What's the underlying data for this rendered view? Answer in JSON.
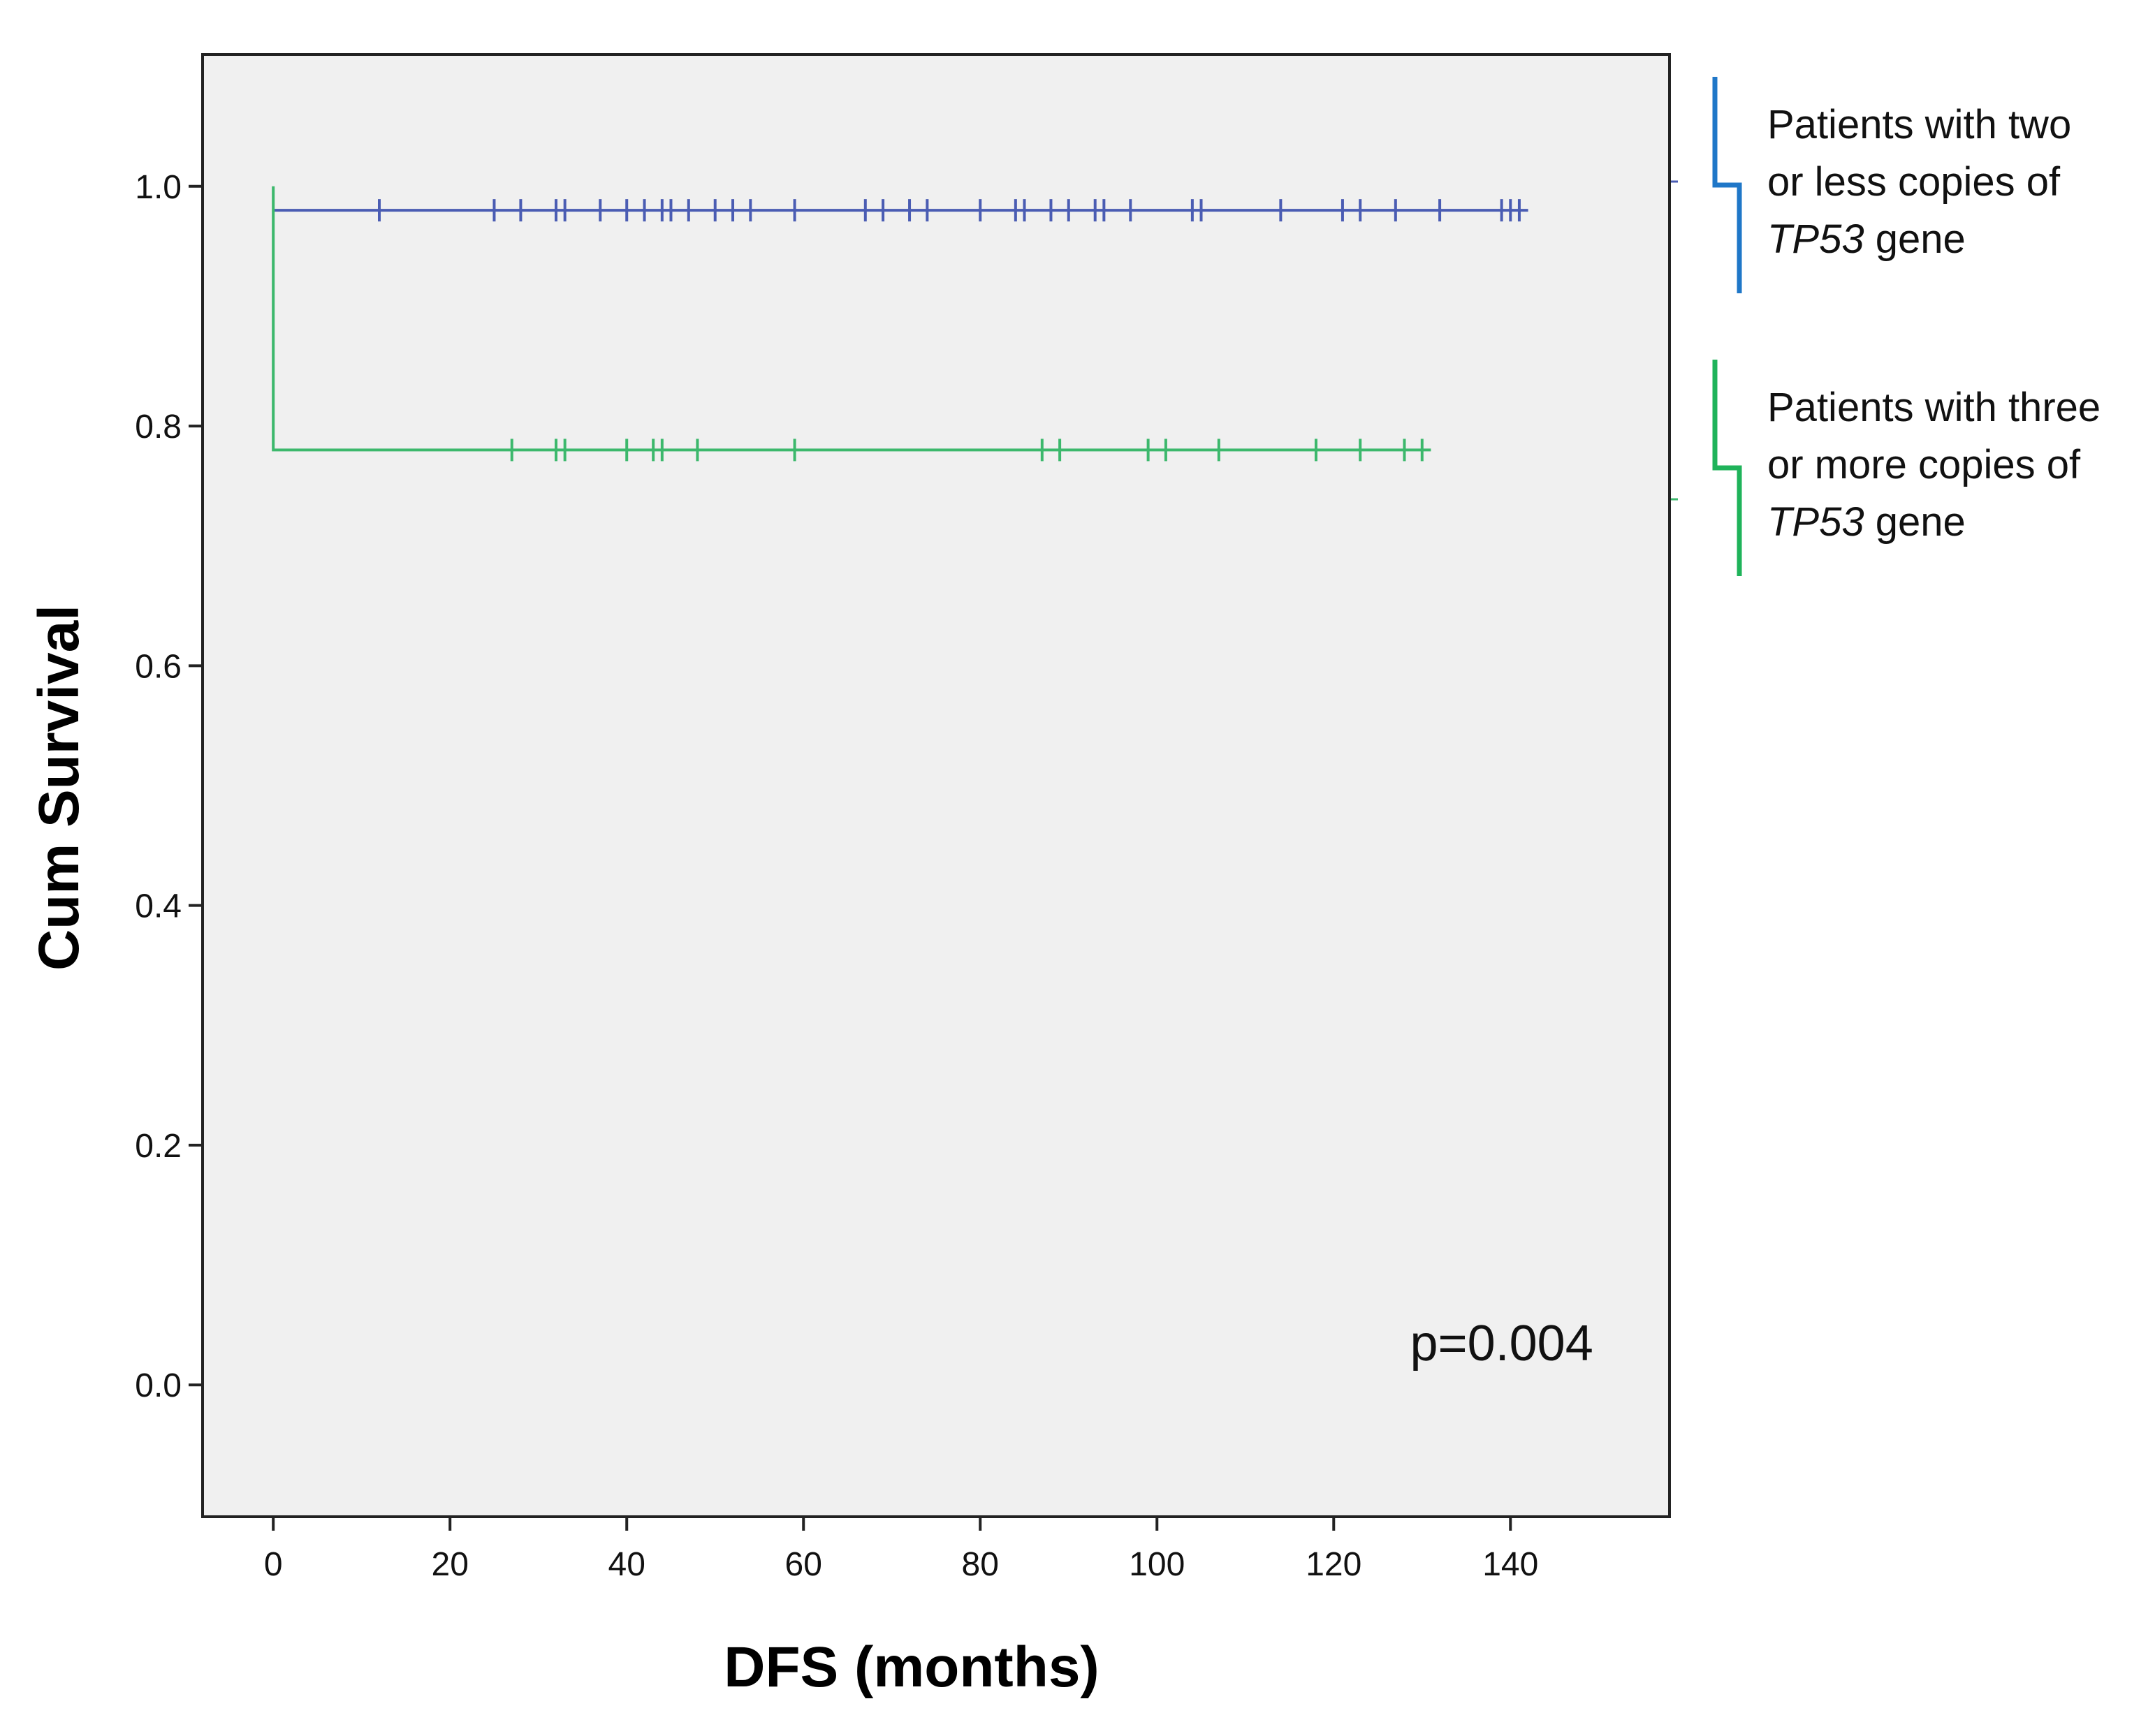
{
  "chart_data": {
    "type": "line",
    "subtype": "kaplan-meier",
    "title": "",
    "xlabel": "DFS (months)",
    "ylabel": "Cum Survival",
    "xlim": [
      -8,
      158
    ],
    "ylim": [
      -0.11,
      1.11
    ],
    "x_ticks": [
      0,
      20,
      40,
      60,
      80,
      100,
      120,
      140
    ],
    "x_tick_labels": [
      "0",
      "20",
      "40",
      "60",
      "80",
      "100",
      "120",
      "140"
    ],
    "y_ticks": [
      0.0,
      0.2,
      0.4,
      0.6,
      0.8,
      1.0
    ],
    "y_tick_labels": [
      "0.0",
      "0.2",
      "0.4",
      "0.6",
      "0.8",
      "1.0"
    ],
    "grid": false,
    "plot_background": "#f0f0f0",
    "legend_position": "right",
    "series": [
      {
        "name": "Patients with two or less copies of TP53 gene",
        "legend_lines": [
          {
            "text": "Patients with two"
          },
          {
            "text": "or less copies of"
          },
          {
            "italic": "TP53",
            "text": " gene"
          }
        ],
        "color": "#4a5cb3",
        "bracket_color": "#1f77c8",
        "steps": [
          [
            0,
            0.98
          ],
          [
            142,
            0.98
          ]
        ],
        "censored": [
          12,
          25,
          28,
          32,
          33,
          37,
          40,
          42,
          44,
          45,
          47,
          50,
          52,
          54,
          59,
          67,
          69,
          72,
          74,
          80,
          84,
          85,
          88,
          90,
          93,
          94,
          97,
          104,
          105,
          114,
          121,
          123,
          127,
          132,
          139,
          140,
          141
        ],
        "censored_value": 0.98
      },
      {
        "name": "Patients with three or more copies of TP53 gene",
        "legend_lines": [
          {
            "text": "Patients with three"
          },
          {
            "text": "or more copies of"
          },
          {
            "italic": "TP53",
            "text": " gene"
          }
        ],
        "color": "#3cb86c",
        "bracket_color": "#1fb35a",
        "steps": [
          [
            0,
            1.0
          ],
          [
            0,
            0.78
          ],
          [
            131,
            0.78
          ]
        ],
        "censored": [
          27,
          32,
          33,
          40,
          43,
          44,
          48,
          59,
          87,
          89,
          99,
          101,
          107,
          118,
          123,
          128,
          130
        ],
        "censored_value": 0.78
      }
    ],
    "annotations": [
      {
        "text": "p=0.004",
        "x": 139,
        "y": 0.035
      }
    ]
  }
}
